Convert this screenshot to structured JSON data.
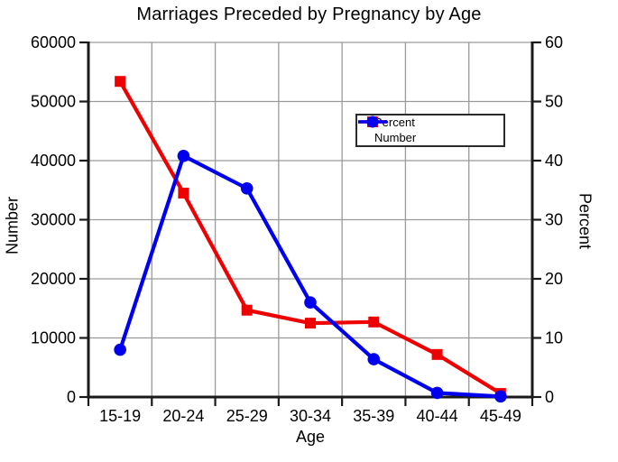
{
  "chart_data": {
    "type": "line",
    "title": "Marriages Preceded by Pregnancy by Age",
    "xlabel": "Age",
    "ylabel_left": "Number",
    "ylabel_right": "Percent",
    "categories": [
      "15-19",
      "20-24",
      "25-29",
      "30-34",
      "35-39",
      "40-44",
      "45-49"
    ],
    "series": [
      {
        "name": "Percent",
        "axis": "right",
        "color": "#ee0000",
        "marker": "square",
        "values": [
          53.4,
          34.5,
          14.7,
          12.5,
          12.7,
          7.2,
          0.6
        ]
      },
      {
        "name": "Number",
        "axis": "left",
        "color": "#0000ee",
        "marker": "circle",
        "values": [
          8000,
          40800,
          35300,
          16000,
          6400,
          700,
          100
        ]
      }
    ],
    "axis_left": {
      "min": 0,
      "max": 60000,
      "step": 10000,
      "tick_labels": [
        "0",
        "10000",
        "20000",
        "30000",
        "40000",
        "50000",
        "60000"
      ]
    },
    "axis_right": {
      "min": 0,
      "max": 60,
      "step": 10,
      "tick_labels": [
        "0",
        "10",
        "20",
        "30",
        "40",
        "50",
        "60"
      ]
    },
    "grid": true,
    "grid_color": "#9a9a9a",
    "axis_color": "#1a1a1a",
    "legend_position": "upper-center"
  }
}
